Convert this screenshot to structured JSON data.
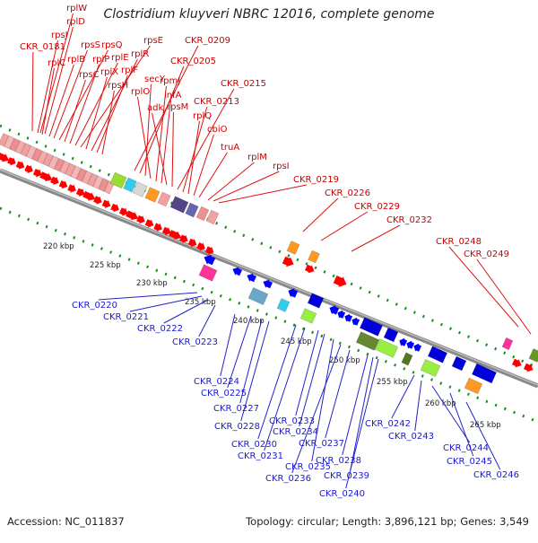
{
  "title": "Clostridium kluyveri NBRC 12016, complete genome",
  "footer": {
    "accession": "Accession: NC_011837",
    "topology": "Topology: circular; Length: 3,896,121 bp; Genes: 3,549"
  },
  "colors": {
    "forward_label": "#cc0000",
    "reverse_label": "#1a1acc",
    "forward_arrow": "#ff0000",
    "reverse_arrow": "#0000ff",
    "backbone": "#888888",
    "dots": "#1a8c1a"
  },
  "kbp_ticks": [
    "220 kbp",
    "225 kbp",
    "230 kbp",
    "235 kbp",
    "240 kbp",
    "245 kbp",
    "250 kbp",
    "255 kbp",
    "260 kbp",
    "265 kbp"
  ],
  "red_labels": [
    "rplW",
    "rplD",
    "CKR_0181",
    "rpsJ",
    "rplC",
    "rplB",
    "rpsS",
    "rpsQ",
    "rpsC",
    "rplP",
    "rplE",
    "rpsE",
    "rplX",
    "rplR",
    "rplF",
    "rpsH",
    "CKR_0209",
    "CKR_0205",
    "secY",
    "rplO",
    "rpmJ",
    "infA",
    "adk",
    "rpsM",
    "CKR_0215",
    "CKR_0213",
    "rplQ",
    "cbiO",
    "truA",
    "rplM",
    "rpsI",
    "CKR_0219",
    "CKR_0226",
    "CKR_0229",
    "CKR_0232",
    "CKR_0248",
    "CKR_0249"
  ],
  "blue_labels": [
    "CKR_0220",
    "CKR_0221",
    "CKR_0222",
    "CKR_0223",
    "CKR_0224",
    "CKR_0225",
    "CKR_0227",
    "CKR_0228",
    "CKR_0230",
    "CKR_0231",
    "CKR_0233",
    "CKR_0234",
    "CKR_0235",
    "CKR_0236",
    "CKR_0237",
    "CKR_0238",
    "CKR_0239",
    "CKR_0240",
    "CKR_0242",
    "CKR_0243",
    "CKR_0244",
    "CKR_0245",
    "CKR_0246"
  ]
}
